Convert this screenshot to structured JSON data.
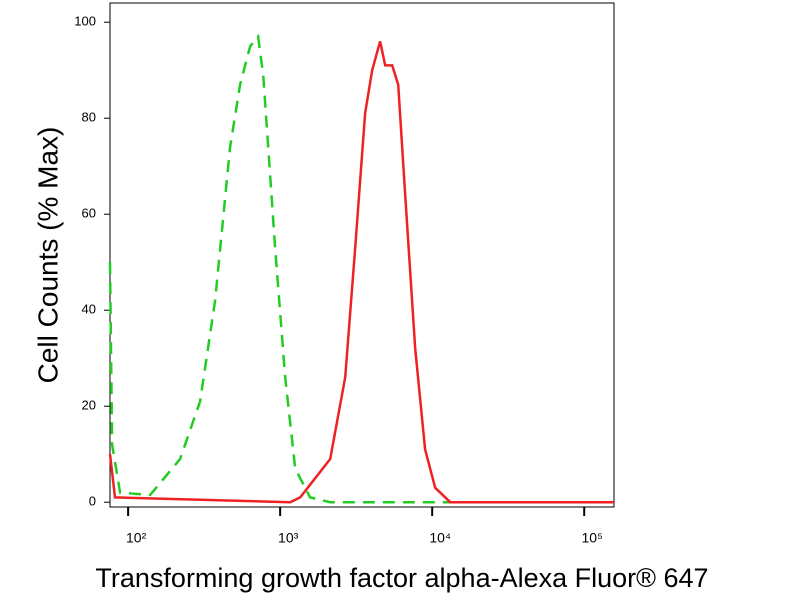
{
  "chart_data": {
    "type": "line",
    "x_label": "Transforming growth factor alpha-Alexa Fluor® 647",
    "y_label": "Cell Counts (% Max)",
    "x_scale": "log",
    "xlim": [
      76,
      157000
    ],
    "ylim": [
      -1,
      104
    ],
    "xticks": [
      {
        "value": 100,
        "label": "10²"
      },
      {
        "value": 1000,
        "label": "10³"
      },
      {
        "value": 10000,
        "label": "10⁴"
      },
      {
        "value": 100000,
        "label": "10⁵"
      }
    ],
    "yticks": [
      0,
      20,
      40,
      60,
      80,
      100
    ],
    "series": [
      {
        "color": "#22cc22",
        "dash": true,
        "x": [
          76,
          78.5,
          88.6,
          139.6,
          219.6,
          297.6,
          373.5,
          468.6,
          545.6,
          635,
          716.6,
          773,
          834,
          927,
          1079,
          1256,
          1575,
          2134,
          157000
        ],
        "values": [
          50,
          12,
          2,
          1.5,
          9,
          21,
          42,
          74,
          87,
          95,
          97,
          89,
          74,
          53,
          26,
          7,
          1,
          0,
          0
        ]
      },
      {
        "color": "#ee2222",
        "dash": false,
        "x": [
          76,
          82,
          1164,
          1355,
          1700,
          2134,
          2679,
          3114,
          3622,
          4030,
          4547,
          4909,
          5458,
          5975,
          6645,
          7727,
          8987,
          10460,
          13130,
          157000
        ],
        "values": [
          10,
          1,
          0,
          1,
          5,
          9,
          26,
          53,
          81,
          90,
          96,
          91,
          91,
          87,
          64,
          32,
          11,
          3,
          0,
          0
        ]
      }
    ]
  }
}
